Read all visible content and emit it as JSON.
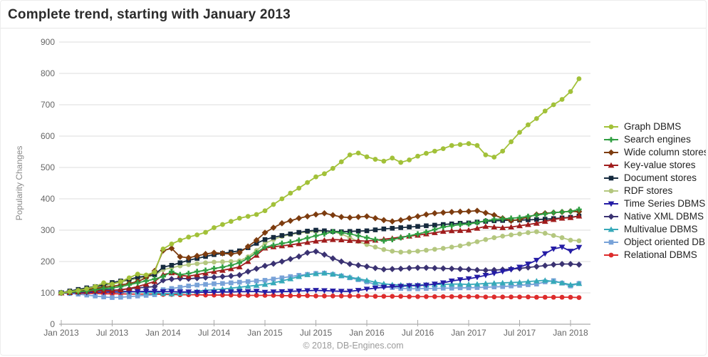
{
  "page": {
    "title": "Complete trend, starting with January 2013"
  },
  "footer": {
    "copyright": "© 2018, DB-Engines.com"
  },
  "chart_data": {
    "type": "line",
    "title": "Complete trend, starting with January 2013",
    "xlabel": "",
    "ylabel": "Popularity Changes",
    "ylim": [
      0,
      900
    ],
    "y_ticks": [
      0,
      100,
      200,
      300,
      400,
      500,
      600,
      700,
      800,
      900
    ],
    "x_tick_labels": [
      "Jan 2013",
      "Jul 2013",
      "Jan 2014",
      "Jul 2014",
      "Jan 2015",
      "Jul 2015",
      "Jan 2016",
      "Jul 2016",
      "Jan 2017",
      "Jul 2017",
      "Jan 2018"
    ],
    "x_start": "Jan 2013",
    "x_end": "Feb 2018",
    "x_interval": "monthly",
    "n_points": 62,
    "grid": true,
    "legend_position": "right",
    "grid_color": "#dddddd",
    "axis_color": "#aaaaaa",
    "tick_label_color": "#666666",
    "series": [
      {
        "name": "Graph DBMS",
        "color": "#a2c139",
        "marker": "circle",
        "values": [
          100,
          104,
          108,
          113,
          120,
          132,
          128,
          136,
          148,
          160,
          157,
          166,
          240,
          256,
          268,
          278,
          285,
          293,
          308,
          318,
          328,
          338,
          344,
          350,
          362,
          382,
          400,
          418,
          434,
          452,
          470,
          480,
          497,
          518,
          540,
          546,
          534,
          526,
          520,
          530,
          516,
          524,
          536,
          545,
          552,
          560,
          570,
          573,
          576,
          570,
          540,
          533,
          552,
          582,
          612,
          636,
          656,
          680,
          700,
          717,
          742,
          783
        ]
      },
      {
        "name": "Search engines",
        "color": "#2f9e41",
        "marker": "plus",
        "values": [
          100,
          102,
          104,
          106,
          110,
          114,
          116,
          120,
          126,
          132,
          138,
          144,
          152,
          168,
          158,
          162,
          168,
          172,
          178,
          182,
          188,
          196,
          210,
          228,
          246,
          252,
          258,
          262,
          268,
          275,
          282,
          288,
          295,
          292,
          288,
          282,
          276,
          270,
          266,
          270,
          276,
          282,
          288,
          294,
          302,
          310,
          314,
          318,
          320,
          324,
          330,
          334,
          336,
          338,
          340,
          344,
          348,
          352,
          356,
          358,
          360,
          366
        ]
      },
      {
        "name": "Wide column stores",
        "color": "#7d3c0f",
        "marker": "diamond",
        "values": [
          100,
          103,
          106,
          110,
          114,
          118,
          121,
          125,
          130,
          136,
          148,
          170,
          235,
          242,
          215,
          212,
          218,
          224,
          228,
          226,
          224,
          228,
          248,
          268,
          292,
          308,
          322,
          330,
          338,
          344,
          350,
          354,
          348,
          342,
          340,
          342,
          344,
          338,
          332,
          328,
          332,
          338,
          344,
          350,
          354,
          356,
          358,
          359,
          360,
          362,
          355,
          348,
          338,
          330,
          334,
          342,
          350,
          354,
          356,
          358,
          360,
          359
        ]
      },
      {
        "name": "Key-value stores",
        "color": "#a01c1c",
        "marker": "triangle-up",
        "values": [
          100,
          101,
          103,
          104,
          106,
          107,
          107,
          110,
          114,
          120,
          128,
          136,
          158,
          164,
          156,
          153,
          158,
          163,
          168,
          172,
          177,
          183,
          200,
          220,
          243,
          247,
          250,
          253,
          257,
          261,
          265,
          268,
          270,
          269,
          267,
          266,
          265,
          268,
          271,
          274,
          278,
          281,
          284,
          288,
          292,
          296,
          298,
          299,
          300,
          306,
          312,
          310,
          308,
          310,
          314,
          318,
          322,
          328,
          334,
          338,
          340,
          345
        ]
      },
      {
        "name": "Document stores",
        "color": "#152a3e",
        "marker": "square",
        "values": [
          100,
          106,
          111,
          116,
          120,
          125,
          133,
          138,
          143,
          150,
          153,
          158,
          182,
          188,
          196,
          204,
          210,
          216,
          222,
          226,
          230,
          234,
          244,
          258,
          270,
          277,
          283,
          288,
          293,
          297,
          300,
          298,
          296,
          295,
          296,
          297,
          298,
          301,
          304,
          306,
          308,
          310,
          312,
          314,
          316,
          318,
          320,
          322,
          323,
          326,
          328,
          330,
          331,
          332,
          332,
          333,
          334,
          335,
          337,
          339,
          341,
          345
        ]
      },
      {
        "name": "RDF stores",
        "color": "#b4c77f",
        "marker": "circle",
        "values": [
          100,
          104,
          108,
          112,
          116,
          122,
          128,
          134,
          140,
          146,
          150,
          156,
          174,
          180,
          186,
          190,
          193,
          196,
          198,
          199,
          200,
          202,
          215,
          235,
          258,
          270,
          280,
          286,
          291,
          294,
          296,
          297,
          295,
          288,
          276,
          264,
          254,
          246,
          238,
          233,
          230,
          231,
          233,
          236,
          239,
          242,
          246,
          250,
          256,
          263,
          270,
          276,
          281,
          285,
          288,
          292,
          295,
          290,
          283,
          276,
          268,
          266
        ]
      },
      {
        "name": "Time Series DBMS",
        "color": "#241ca5",
        "marker": "triangle-down",
        "values": [
          100,
          100,
          101,
          101,
          102,
          102,
          103,
          103,
          104,
          104,
          105,
          105,
          104,
          104,
          103,
          103,
          102,
          102,
          102,
          103,
          103,
          104,
          104,
          105,
          102,
          103,
          104,
          105,
          106,
          107,
          108,
          107,
          106,
          105,
          105,
          108,
          112,
          115,
          118,
          120,
          121,
          123,
          123,
          125,
          128,
          132,
          138,
          142,
          145,
          150,
          156,
          162,
          168,
          174,
          182,
          192,
          204,
          225,
          240,
          246,
          233,
          245
        ]
      },
      {
        "name": "Native XML DBMS",
        "color": "#3a3272",
        "marker": "diamond",
        "values": [
          100,
          102,
          105,
          107,
          109,
          111,
          108,
          110,
          113,
          116,
          118,
          120,
          140,
          144,
          146,
          145,
          147,
          149,
          150,
          152,
          154,
          157,
          168,
          177,
          186,
          193,
          200,
          208,
          216,
          228,
          232,
          222,
          210,
          200,
          192,
          188,
          184,
          179,
          175,
          176,
          177,
          179,
          180,
          180,
          179,
          178,
          177,
          176,
          175,
          173,
          172,
          173,
          174,
          176,
          178,
          181,
          184,
          187,
          190,
          192,
          192,
          190
        ]
      },
      {
        "name": "Multivalue DBMS",
        "color": "#36a9b9",
        "marker": "triangle-up",
        "values": [
          100,
          101,
          103,
          106,
          110,
          116,
          110,
          106,
          104,
          103,
          102,
          101,
          98,
          97,
          99,
          102,
          105,
          108,
          110,
          112,
          115,
          118,
          121,
          124,
          127,
          132,
          138,
          145,
          152,
          158,
          161,
          163,
          160,
          155,
          150,
          145,
          140,
          134,
          129,
          126,
          125,
          124,
          125,
          126,
          127,
          127,
          128,
          128,
          127,
          128,
          130,
          131,
          132,
          133,
          134,
          136,
          138,
          140,
          136,
          132,
          126,
          130
        ]
      },
      {
        "name": "Object oriented DBMS",
        "color": "#78a2d8",
        "marker": "square",
        "values": [
          100,
          98,
          96,
          93,
          90,
          87,
          85,
          86,
          88,
          90,
          92,
          94,
          110,
          114,
          118,
          122,
          125,
          127,
          129,
          130,
          132,
          134,
          136,
          138,
          140,
          144,
          148,
          152,
          156,
          159,
          162,
          163,
          159,
          154,
          148,
          142,
          135,
          127,
          121,
          117,
          114,
          113,
          113,
          114,
          114,
          115,
          115,
          116,
          116,
          117,
          118,
          119,
          120,
          122,
          124,
          126,
          128,
          135,
          139,
          131,
          122,
          130
        ]
      },
      {
        "name": "Relational DBMS",
        "color": "#dd2c2c",
        "marker": "circle",
        "values": [
          100,
          99,
          99,
          98,
          98,
          97,
          97,
          97,
          96,
          96,
          96,
          96,
          95,
          95,
          94,
          94,
          94,
          93,
          93,
          93,
          93,
          92,
          92,
          92,
          92,
          92,
          91,
          91,
          91,
          91,
          90,
          90,
          90,
          90,
          90,
          90,
          90,
          89,
          89,
          89,
          89,
          88,
          88,
          88,
          88,
          88,
          88,
          88,
          88,
          88,
          87,
          87,
          87,
          87,
          87,
          87,
          86,
          86,
          86,
          86,
          86,
          85
        ]
      }
    ]
  }
}
